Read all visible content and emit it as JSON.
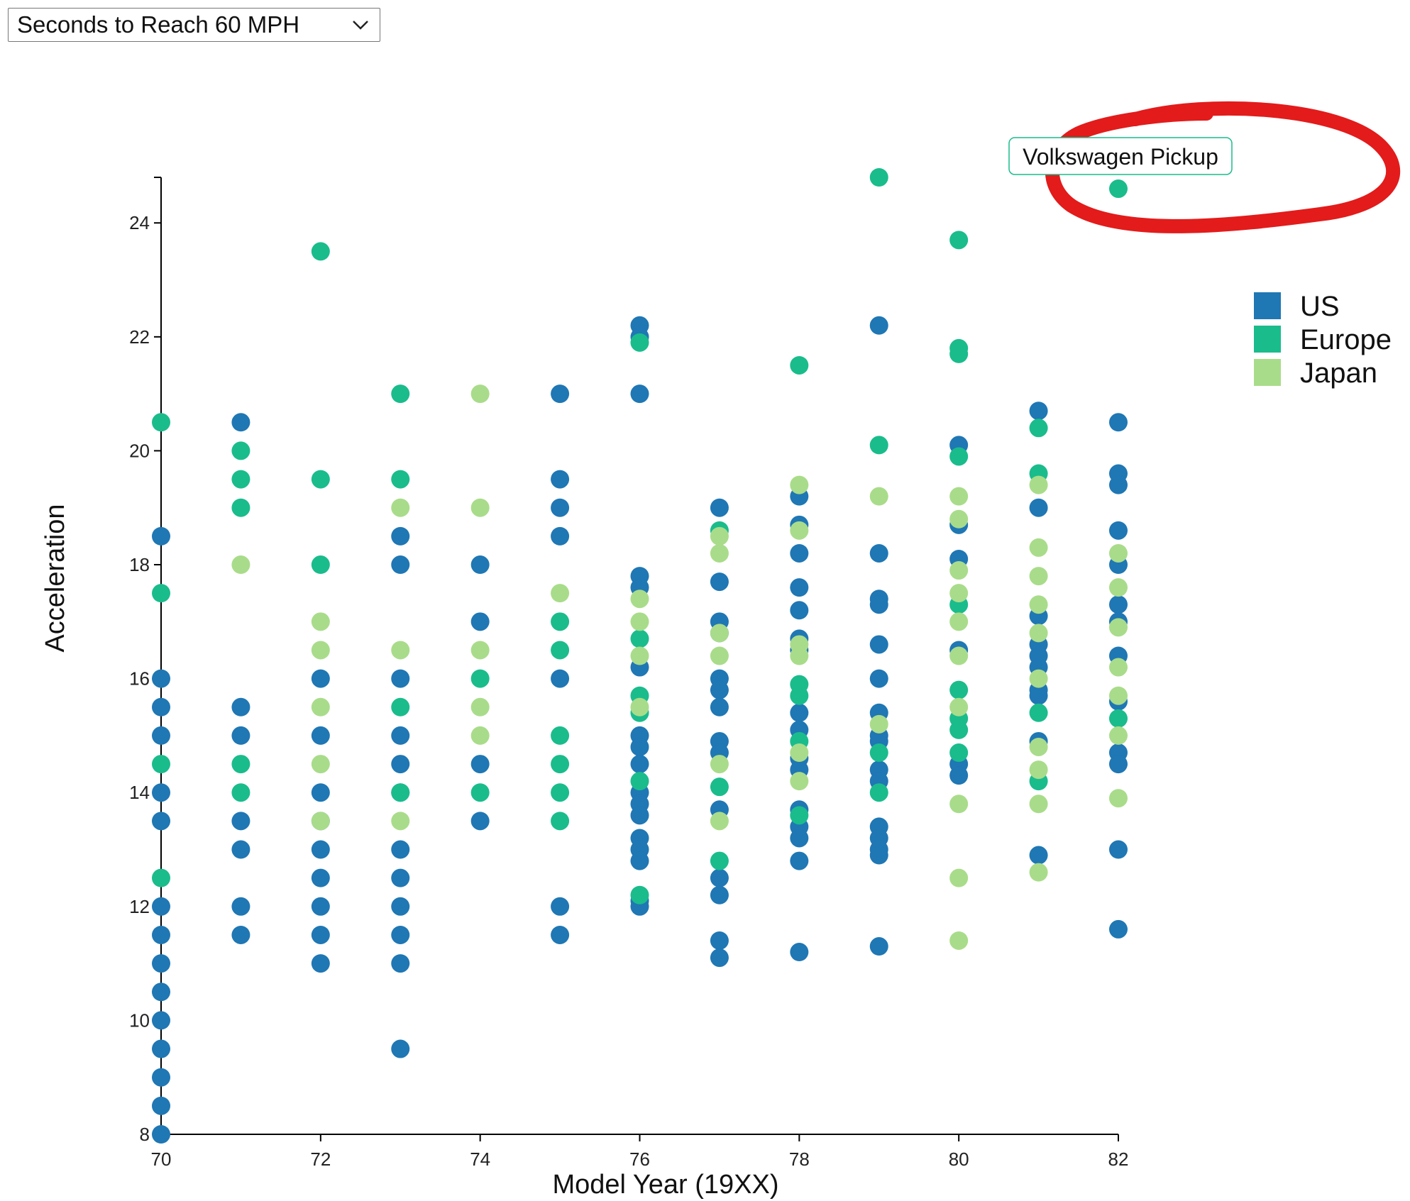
{
  "dropdown": {
    "selected": "Seconds to Reach 60 MPH",
    "icon": "chevron-down-icon"
  },
  "colors": {
    "US": "#1f77b4",
    "Europe": "#1abc8c",
    "Japan": "#a9dc8a",
    "annotation": "#e31b1b",
    "axis": "#000000"
  },
  "chart_data": {
    "type": "scatter",
    "title": "",
    "xlabel": "Model Year (19XX)",
    "ylabel": "Acceleration",
    "xlim": [
      70,
      82
    ],
    "ylim": [
      8,
      24.8
    ],
    "x_ticks": [
      70,
      72,
      74,
      76,
      78,
      80,
      82
    ],
    "y_ticks": [
      8,
      10,
      12,
      14,
      16,
      18,
      20,
      22,
      24
    ],
    "legend": {
      "placement": "right",
      "entries": [
        "US",
        "Europe",
        "Japan"
      ]
    },
    "tooltip": {
      "text": "Volkswagen Pickup",
      "x": 82,
      "y": 24.6,
      "highlighted": true
    },
    "series": [
      {
        "name": "US",
        "points": [
          [
            70,
            18.5
          ],
          [
            70,
            16
          ],
          [
            70,
            15.5
          ],
          [
            70,
            15
          ],
          [
            70,
            14
          ],
          [
            70,
            13.5
          ],
          [
            70,
            12
          ],
          [
            70,
            11.5
          ],
          [
            70,
            11
          ],
          [
            70,
            10.5
          ],
          [
            70,
            10
          ],
          [
            70,
            9.5
          ],
          [
            70,
            9
          ],
          [
            70,
            8.5
          ],
          [
            70,
            8
          ],
          [
            71,
            20.5
          ],
          [
            71,
            15.5
          ],
          [
            71,
            15
          ],
          [
            71,
            13.5
          ],
          [
            71,
            13
          ],
          [
            71,
            12
          ],
          [
            71,
            11.5
          ],
          [
            72,
            16
          ],
          [
            72,
            15
          ],
          [
            72,
            14
          ],
          [
            72,
            13.5
          ],
          [
            72,
            13
          ],
          [
            72,
            12.5
          ],
          [
            72,
            12
          ],
          [
            72,
            11.5
          ],
          [
            72,
            11
          ],
          [
            73,
            18.5
          ],
          [
            73,
            18
          ],
          [
            73,
            16
          ],
          [
            73,
            15
          ],
          [
            73,
            14.5
          ],
          [
            73,
            14
          ],
          [
            73,
            13
          ],
          [
            73,
            12.5
          ],
          [
            73,
            12
          ],
          [
            73,
            11.5
          ],
          [
            73,
            11
          ],
          [
            73,
            9.5
          ],
          [
            74,
            18
          ],
          [
            74,
            17
          ],
          [
            74,
            14.5
          ],
          [
            74,
            13.5
          ],
          [
            75,
            21
          ],
          [
            75,
            19.5
          ],
          [
            75,
            19
          ],
          [
            75,
            18.5
          ],
          [
            75,
            16
          ],
          [
            75,
            12
          ],
          [
            75,
            11.5
          ],
          [
            76,
            22.2
          ],
          [
            76,
            22
          ],
          [
            76,
            21
          ],
          [
            76,
            17.8
          ],
          [
            76,
            17.6
          ],
          [
            76,
            16.2
          ],
          [
            76,
            15
          ],
          [
            76,
            14.8
          ],
          [
            76,
            14.5
          ],
          [
            76,
            14
          ],
          [
            76,
            13.8
          ],
          [
            76,
            13.6
          ],
          [
            76,
            13.2
          ],
          [
            76,
            13
          ],
          [
            76,
            12.8
          ],
          [
            76,
            12.1
          ],
          [
            76,
            12
          ],
          [
            77,
            19
          ],
          [
            77,
            17.7
          ],
          [
            77,
            17
          ],
          [
            77,
            16.8
          ],
          [
            77,
            16
          ],
          [
            77,
            15.8
          ],
          [
            77,
            15.5
          ],
          [
            77,
            14.9
          ],
          [
            77,
            14.7
          ],
          [
            77,
            13.7
          ],
          [
            77,
            12.5
          ],
          [
            77,
            12.2
          ],
          [
            77,
            11.4
          ],
          [
            77,
            11.1
          ],
          [
            78,
            19.2
          ],
          [
            78,
            18.7
          ],
          [
            78,
            18.2
          ],
          [
            78,
            17.6
          ],
          [
            78,
            17.2
          ],
          [
            78,
            16.7
          ],
          [
            78,
            16.5
          ],
          [
            78,
            15.4
          ],
          [
            78,
            15.1
          ],
          [
            78,
            14.6
          ],
          [
            78,
            14.4
          ],
          [
            78,
            13.7
          ],
          [
            78,
            13.4
          ],
          [
            78,
            13.2
          ],
          [
            78,
            12.8
          ],
          [
            78,
            11.2
          ],
          [
            79,
            22.2
          ],
          [
            79,
            18.2
          ],
          [
            79,
            17.4
          ],
          [
            79,
            17.3
          ],
          [
            79,
            16.6
          ],
          [
            79,
            16
          ],
          [
            79,
            15.4
          ],
          [
            79,
            15
          ],
          [
            79,
            14.9
          ],
          [
            79,
            14.4
          ],
          [
            79,
            14.2
          ],
          [
            79,
            13.4
          ],
          [
            79,
            13.2
          ],
          [
            79,
            13
          ],
          [
            79,
            12.9
          ],
          [
            79,
            11.3
          ],
          [
            80,
            20.1
          ],
          [
            80,
            18.7
          ],
          [
            80,
            18.1
          ],
          [
            80,
            16.5
          ],
          [
            80,
            14.5
          ],
          [
            80,
            14.3
          ],
          [
            81,
            20.7
          ],
          [
            81,
            19
          ],
          [
            81,
            17.1
          ],
          [
            81,
            16.6
          ],
          [
            81,
            16.4
          ],
          [
            81,
            16.2
          ],
          [
            81,
            15.8
          ],
          [
            81,
            15.7
          ],
          [
            81,
            14.9
          ],
          [
            81,
            12.9
          ],
          [
            82,
            20.5
          ],
          [
            82,
            19.6
          ],
          [
            82,
            19.4
          ],
          [
            82,
            18.6
          ],
          [
            82,
            18
          ],
          [
            82,
            17.3
          ],
          [
            82,
            17
          ],
          [
            82,
            16.4
          ],
          [
            82,
            15.6
          ],
          [
            82,
            14.7
          ],
          [
            82,
            14.5
          ],
          [
            82,
            13
          ],
          [
            82,
            11.6
          ]
        ]
      },
      {
        "name": "Europe",
        "points": [
          [
            70,
            20.5
          ],
          [
            70,
            17.5
          ],
          [
            70,
            14.5
          ],
          [
            70,
            12.5
          ],
          [
            71,
            20
          ],
          [
            71,
            19.5
          ],
          [
            71,
            19
          ],
          [
            71,
            14.5
          ],
          [
            71,
            14
          ],
          [
            72,
            23.5
          ],
          [
            72,
            19.5
          ],
          [
            72,
            18
          ],
          [
            73,
            21
          ],
          [
            73,
            19.5
          ],
          [
            73,
            15.5
          ],
          [
            73,
            14
          ],
          [
            74,
            16
          ],
          [
            74,
            14
          ],
          [
            75,
            17
          ],
          [
            75,
            16.5
          ],
          [
            75,
            15
          ],
          [
            75,
            14.5
          ],
          [
            75,
            14
          ],
          [
            75,
            13.5
          ],
          [
            76,
            21.9
          ],
          [
            76,
            16.7
          ],
          [
            76,
            15.7
          ],
          [
            76,
            15.4
          ],
          [
            76,
            14.2
          ],
          [
            76,
            12.2
          ],
          [
            77,
            18.6
          ],
          [
            77,
            14.1
          ],
          [
            77,
            12.8
          ],
          [
            78,
            21.5
          ],
          [
            78,
            15.9
          ],
          [
            78,
            15.7
          ],
          [
            78,
            14.9
          ],
          [
            78,
            13.6
          ],
          [
            79,
            24.8
          ],
          [
            79,
            20.1
          ],
          [
            79,
            14.7
          ],
          [
            79,
            14
          ],
          [
            80,
            23.7
          ],
          [
            80,
            21.8
          ],
          [
            80,
            21.7
          ],
          [
            80,
            19.9
          ],
          [
            80,
            17.3
          ],
          [
            80,
            15.8
          ],
          [
            80,
            15.3
          ],
          [
            80,
            15.1
          ],
          [
            80,
            14.7
          ],
          [
            81,
            20.4
          ],
          [
            81,
            19.6
          ],
          [
            81,
            15.4
          ],
          [
            81,
            14.2
          ],
          [
            82,
            24.6
          ],
          [
            82,
            15.3
          ]
        ]
      },
      {
        "name": "Japan",
        "points": [
          [
            71,
            18
          ],
          [
            72,
            17
          ],
          [
            72,
            16.5
          ],
          [
            72,
            15.5
          ],
          [
            72,
            14.5
          ],
          [
            72,
            13.5
          ],
          [
            73,
            19
          ],
          [
            73,
            16.5
          ],
          [
            73,
            13.5
          ],
          [
            74,
            21
          ],
          [
            74,
            19
          ],
          [
            74,
            16.5
          ],
          [
            74,
            15.5
          ],
          [
            74,
            15
          ],
          [
            75,
            17.5
          ],
          [
            76,
            17.4
          ],
          [
            76,
            17
          ],
          [
            76,
            16.4
          ],
          [
            76,
            15.5
          ],
          [
            77,
            18.5
          ],
          [
            77,
            18.2
          ],
          [
            77,
            16.8
          ],
          [
            77,
            16.4
          ],
          [
            77,
            14.5
          ],
          [
            77,
            13.5
          ],
          [
            78,
            19.4
          ],
          [
            78,
            18.6
          ],
          [
            78,
            16.4
          ],
          [
            78,
            16.6
          ],
          [
            78,
            14.7
          ],
          [
            78,
            14.2
          ],
          [
            79,
            19.2
          ],
          [
            79,
            15.2
          ],
          [
            80,
            19.2
          ],
          [
            80,
            18.8
          ],
          [
            80,
            17.9
          ],
          [
            80,
            17.5
          ],
          [
            80,
            17
          ],
          [
            80,
            16.4
          ],
          [
            80,
            15.5
          ],
          [
            80,
            13.8
          ],
          [
            80,
            12.5
          ],
          [
            80,
            11.4
          ],
          [
            81,
            19.4
          ],
          [
            81,
            18.3
          ],
          [
            81,
            17.8
          ],
          [
            81,
            17.3
          ],
          [
            81,
            16.8
          ],
          [
            81,
            16
          ],
          [
            81,
            14.8
          ],
          [
            81,
            14.4
          ],
          [
            81,
            13.8
          ],
          [
            81,
            12.6
          ],
          [
            82,
            18.2
          ],
          [
            82,
            17.6
          ],
          [
            82,
            16.9
          ],
          [
            82,
            16.2
          ],
          [
            82,
            15.7
          ],
          [
            82,
            15
          ],
          [
            82,
            13.9
          ]
        ]
      }
    ]
  }
}
